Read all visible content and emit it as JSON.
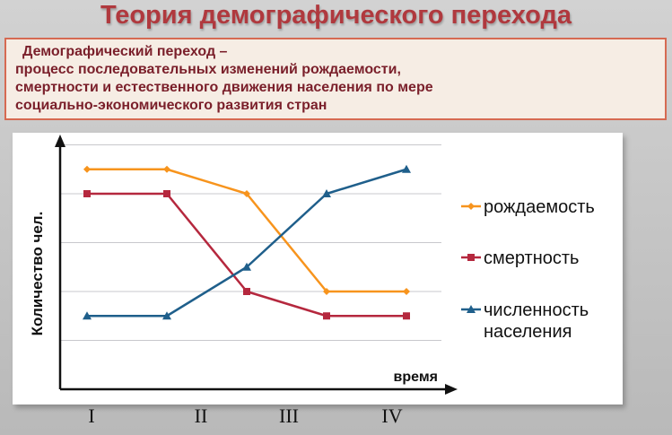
{
  "title": "Теория демографического перехода",
  "definition": {
    "term": "Демографический переход –",
    "text": "процесс последовательных изменений рождаемости,\nсмертности и естественного движения населения по мере\nсоциально-экономического развития стран"
  },
  "chart_data": {
    "type": "line",
    "title": "",
    "xlabel": "время",
    "ylabel": "Количество чел.",
    "categories": [
      "I",
      "II",
      "III",
      "IV"
    ],
    "x": [
      0,
      1,
      2,
      3,
      4
    ],
    "ylim": [
      0,
      5
    ],
    "grid": true,
    "legend": "right",
    "series": [
      {
        "name": "рождаемость",
        "color": "#f7941d",
        "marker": "diamond",
        "values": [
          4.5,
          4.5,
          4.0,
          2.0,
          2.0
        ]
      },
      {
        "name": "смертность",
        "color": "#b5283e",
        "marker": "square",
        "values": [
          4.0,
          4.0,
          2.0,
          1.5,
          1.5
        ]
      },
      {
        "name": "численность\nнаселения",
        "color": "#1f5f8b",
        "marker": "triangle",
        "values": [
          1.5,
          1.5,
          2.5,
          4.0,
          4.5
        ]
      }
    ]
  }
}
